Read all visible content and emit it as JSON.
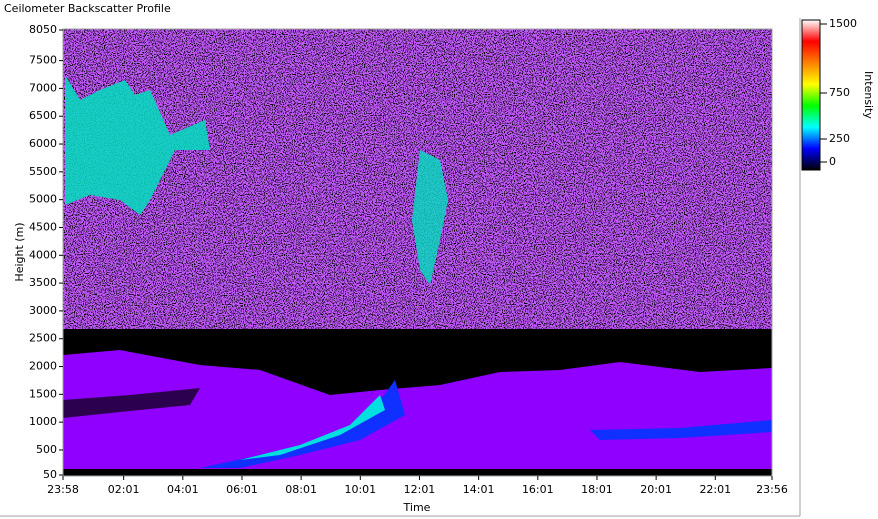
{
  "chart_data": {
    "type": "heatmap",
    "title": "Ceilometer Backscatter Profile",
    "xlabel": "Time",
    "ylabel": "Height (m)",
    "xlim": [
      0,
      1438
    ],
    "xticks": [
      {
        "value": 0,
        "label": "23:58"
      },
      {
        "value": 123,
        "label": "02:01"
      },
      {
        "value": 243,
        "label": "04:01"
      },
      {
        "value": 363,
        "label": "06:01"
      },
      {
        "value": 483,
        "label": "08:01"
      },
      {
        "value": 603,
        "label": "10:01"
      },
      {
        "value": 723,
        "label": "12:01"
      },
      {
        "value": 843,
        "label": "14:01"
      },
      {
        "value": 963,
        "label": "16:01"
      },
      {
        "value": 1083,
        "label": "18:01"
      },
      {
        "value": 1203,
        "label": "20:01"
      },
      {
        "value": 1323,
        "label": "22:01"
      },
      {
        "value": 1438,
        "label": "23:56"
      }
    ],
    "ylim": [
      50,
      8050
    ],
    "yticks": [
      50,
      500,
      1000,
      1500,
      2000,
      2500,
      3000,
      3500,
      4000,
      4500,
      5000,
      5500,
      6000,
      6500,
      7000,
      7500,
      8050
    ],
    "colorbar": {
      "label": "Intensity",
      "lim": [
        0,
        1500
      ],
      "ticks": [
        0,
        250,
        750,
        1500
      ],
      "colors": [
        "#000000",
        "#0000ff",
        "#00ffff",
        "#00ff00",
        "#ffff00",
        "#ff8000",
        "#ff0000",
        "#ffffff"
      ]
    }
  }
}
